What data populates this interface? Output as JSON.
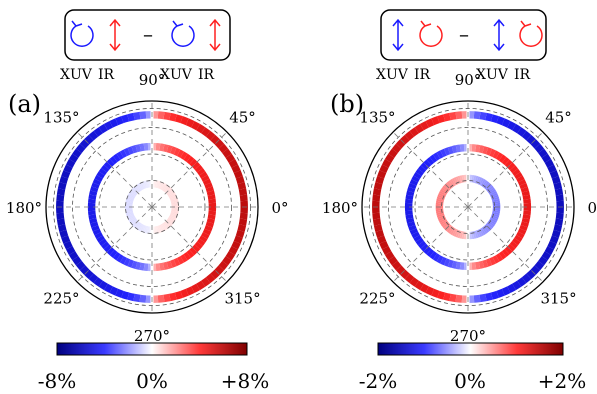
{
  "chart_data": [
    {
      "type": "heatmap",
      "panel_label": "(a)",
      "polar": true,
      "legend_box": {
        "left_term": {
          "xuv_helicity": "circular-counterclockwise",
          "ir_polarization": "linear-vertical",
          "xuv_color": "#1a1aff",
          "ir_color": "#ff2020"
        },
        "operator": "–",
        "right_term": {
          "xuv_helicity": "circular-counterclockwise",
          "ir_polarization": "linear-vertical",
          "xuv_color": "#1a1aff",
          "ir_color": "#ff2020"
        },
        "labels": [
          "XUV",
          "IR",
          "XUV",
          "IR"
        ]
      },
      "angle_labels": [
        "90°",
        "45°",
        "0°",
        "315°",
        "270°",
        "225°",
        "180°",
        "135°"
      ],
      "rings": [
        {
          "radius": 0.87,
          "amplitude": 0.8,
          "sign_rule": "cos_phi"
        },
        {
          "radius": 0.57,
          "amplitude": 0.6,
          "sign_rule": "cos_phi"
        },
        {
          "radius": 0.22,
          "amplitude": 0.08,
          "sign_rule": "cos_phi"
        }
      ],
      "colorbar": {
        "min": -8,
        "max": 8,
        "unit": "%",
        "ticks": [
          "-8%",
          "0%",
          "+8%"
        ]
      }
    },
    {
      "type": "heatmap",
      "panel_label": "(b)",
      "polar": true,
      "legend_box": {
        "left_term": {
          "xuv_helicity": "linear-vertical",
          "ir_polarization": "circular-counterclockwise",
          "xuv_color": "#1a1aff",
          "ir_color": "#ff2020"
        },
        "operator": "–",
        "right_term": {
          "xuv_helicity": "linear-vertical",
          "ir_polarization": "circular-counterclockwise",
          "xuv_color": "#1a1aff",
          "ir_color": "#ff2020"
        },
        "labels": [
          "XUV",
          "IR",
          "XUV",
          "IR"
        ]
      },
      "angle_labels": [
        "90°",
        "45°",
        "0°",
        "315°",
        "270°",
        "225°",
        "180°",
        "135°"
      ],
      "rings": [
        {
          "radius": 0.87,
          "amplitude": 0.8,
          "sign_rule": "neg_cos_phi"
        },
        {
          "radius": 0.56,
          "amplitude": 0.6,
          "sign_rule": "cos_phi"
        },
        {
          "radius": 0.27,
          "amplitude": 0.3,
          "sign_rule": "neg_cos_phi"
        }
      ],
      "colorbar": {
        "min": -2,
        "max": 2,
        "unit": "%",
        "ticks": [
          "-2%",
          "0%",
          "+2%"
        ]
      }
    }
  ]
}
